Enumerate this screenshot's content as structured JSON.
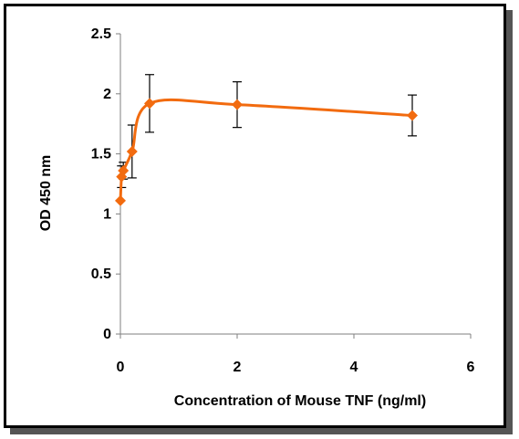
{
  "chart_data": {
    "type": "line",
    "title": "",
    "xlabel": "Concentration of Mouse TNF (ng/ml)",
    "ylabel": "OD 450 nm",
    "xlim": [
      0,
      6
    ],
    "ylim": [
      0,
      2.5
    ],
    "x_ticks": [
      "0",
      "2",
      "4",
      "6"
    ],
    "y_ticks": [
      "0",
      "0.5",
      "1",
      "1.5",
      "2",
      "2.5"
    ],
    "grid": false,
    "legend": "none",
    "series": [
      {
        "color": "#F26B0F",
        "marker": "diamond",
        "smooth": true,
        "points": [
          {
            "x": 0,
            "y": 1.11,
            "err": 0.0
          },
          {
            "x": 0.02,
            "y": 1.31,
            "err": 0.09
          },
          {
            "x": 0.05,
            "y": 1.36,
            "err": 0.07
          },
          {
            "x": 0.2,
            "y": 1.52,
            "err": 0.22
          },
          {
            "x": 0.5,
            "y": 1.92,
            "err": 0.24
          },
          {
            "x": 2,
            "y": 1.91,
            "err": 0.19
          },
          {
            "x": 5,
            "y": 1.82,
            "err": 0.17
          }
        ]
      }
    ]
  }
}
